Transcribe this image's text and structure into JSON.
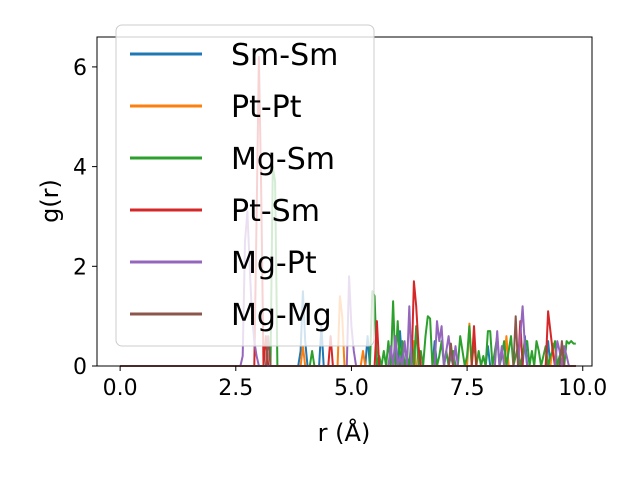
{
  "chart_data": {
    "type": "line",
    "title": "",
    "xlabel": "r (Å)",
    "ylabel": "g(r)",
    "xlim": [
      -0.5,
      10.2
    ],
    "ylim": [
      0,
      6.6
    ],
    "xticks": [
      0.0,
      2.5,
      5.0,
      7.5,
      10.0
    ],
    "xtick_labels": [
      "0.0",
      "2.5",
      "5.0",
      "7.5",
      "10.0"
    ],
    "yticks": [
      0,
      2,
      4,
      6
    ],
    "ytick_labels": [
      "0",
      "2",
      "4",
      "6"
    ],
    "grid": false,
    "legend_position": "upper-left",
    "series": [
      {
        "name": "Sm-Sm",
        "color": "#1f77b4",
        "x": [
          0.0,
          3.85,
          3.9,
          3.95,
          4.0,
          4.05,
          4.3,
          4.35,
          4.4,
          5.3,
          5.35,
          5.4,
          6.0,
          6.05,
          6.1,
          6.75,
          6.8,
          6.85,
          7.9,
          7.95,
          8.0,
          8.7,
          8.75,
          8.8,
          9.2,
          9.25,
          9.3,
          9.85
        ],
        "y": [
          0,
          0,
          0.3,
          1.5,
          0.5,
          0,
          0,
          0.8,
          0,
          0,
          0.6,
          0,
          0,
          0.7,
          0,
          0,
          0.5,
          0,
          0,
          0.4,
          0,
          0,
          0.6,
          0,
          0,
          0.5,
          0,
          0
        ]
      },
      {
        "name": "Pt-Pt",
        "color": "#ff7f0e",
        "x": [
          0.0,
          3.9,
          3.95,
          4.0,
          4.7,
          4.75,
          4.8,
          4.85,
          5.2,
          5.25,
          5.3,
          6.3,
          6.35,
          6.4,
          7.5,
          7.55,
          7.6,
          8.3,
          8.35,
          8.4,
          9.3,
          9.35,
          9.4,
          9.85
        ],
        "y": [
          0,
          0,
          0.4,
          0,
          0,
          1.4,
          1.0,
          0,
          0,
          0.3,
          0,
          0,
          0.5,
          0,
          0,
          0.85,
          0,
          0,
          0.6,
          0,
          0,
          0.45,
          0,
          0
        ]
      },
      {
        "name": "Mg-Sm",
        "color": "#2ca02c",
        "x": [
          0.0,
          3.2,
          3.25,
          3.3,
          3.35,
          3.4,
          4.1,
          4.15,
          4.2,
          5.4,
          5.45,
          5.5,
          5.55,
          5.6,
          5.65,
          5.7,
          5.75,
          5.8,
          5.85,
          5.9,
          5.95,
          6.0,
          6.05,
          6.1,
          6.15,
          6.2,
          6.25,
          6.3,
          6.35,
          6.4,
          6.45,
          6.5,
          6.55,
          6.6,
          6.65,
          6.7,
          6.75,
          6.8,
          6.85,
          6.9,
          6.95,
          7.0,
          7.05,
          7.1,
          7.15,
          7.2,
          7.25,
          7.3,
          7.35,
          7.4,
          7.45,
          7.5,
          7.55,
          7.6,
          7.65,
          7.7,
          7.75,
          7.8,
          7.85,
          7.9,
          7.95,
          8.0,
          8.05,
          8.1,
          8.15,
          8.2,
          8.25,
          8.3,
          8.35,
          8.4,
          8.45,
          8.5,
          8.55,
          8.6,
          8.65,
          8.7,
          8.75,
          8.8,
          8.85,
          8.9,
          8.95,
          9.0,
          9.05,
          9.1,
          9.15,
          9.2,
          9.25,
          9.3,
          9.35,
          9.4,
          9.45,
          9.5,
          9.55,
          9.6,
          9.65,
          9.7,
          9.75,
          9.8,
          9.85
        ],
        "y": [
          0,
          0,
          0,
          4.0,
          3.7,
          0,
          0,
          0.3,
          0,
          0,
          1.5,
          1.4,
          0,
          0.2,
          0,
          0.3,
          0,
          0.5,
          0,
          1.3,
          0,
          0.9,
          0,
          0.5,
          0,
          0.2,
          0,
          0.6,
          0,
          0.8,
          0,
          0.3,
          0,
          0.6,
          1.0,
          0.95,
          0,
          0.3,
          0,
          0.2,
          0.5,
          0,
          0.3,
          0,
          0.2,
          0.3,
          0,
          0,
          0.6,
          0.3,
          0,
          0.2,
          0.8,
          0,
          0.5,
          0,
          0.3,
          0,
          0.2,
          0,
          0.7,
          0.7,
          0,
          0.3,
          0.6,
          0,
          0.2,
          0.5,
          0,
          0.3,
          0.6,
          0,
          0.2,
          0.4,
          0,
          0.2,
          0.5,
          0.5,
          0,
          0.3,
          0,
          0.5,
          0.3,
          0,
          0.2,
          0.4,
          0,
          0.2,
          0.3,
          0.5,
          0,
          0.2,
          0.3,
          0,
          0.5,
          0.45,
          0.5,
          0.45,
          0.45
        ]
      },
      {
        "name": "Pt-Sm",
        "color": "#d62728",
        "x": [
          0.0,
          2.9,
          2.95,
          3.0,
          3.05,
          3.1,
          3.15,
          3.2,
          4.5,
          4.55,
          4.6,
          5.5,
          5.55,
          5.6,
          6.3,
          6.35,
          6.4,
          6.45,
          6.5,
          7.6,
          7.65,
          7.7,
          8.6,
          8.65,
          8.7,
          9.2,
          9.25,
          9.3,
          9.35,
          9.4,
          9.85
        ],
        "y": [
          0,
          0,
          3.0,
          6.2,
          3.5,
          0,
          0.6,
          0,
          0,
          0.6,
          0,
          0,
          0.9,
          0,
          0,
          1.7,
          1.2,
          0.4,
          0,
          0,
          0.8,
          0,
          0,
          0.9,
          0,
          0,
          1.1,
          0.7,
          0.3,
          0,
          0
        ]
      },
      {
        "name": "Mg-Pt",
        "color": "#9467bd",
        "x": [
          0.0,
          2.6,
          2.65,
          2.7,
          2.75,
          2.8,
          2.85,
          2.9,
          2.95,
          3.0,
          4.9,
          4.95,
          5.0,
          5.05,
          5.1,
          5.8,
          5.85,
          5.9,
          5.95,
          6.0,
          6.05,
          6.1,
          6.15,
          6.2,
          6.25,
          6.3,
          6.8,
          6.85,
          6.9,
          6.95,
          7.0,
          7.05,
          7.1,
          7.15,
          7.2,
          7.25,
          7.3,
          8.1,
          8.15,
          8.2,
          8.25,
          8.3,
          8.6,
          8.65,
          8.7,
          8.75,
          8.8,
          9.4,
          9.45,
          9.5,
          9.55,
          9.6,
          9.65,
          9.7
        ],
        "y": [
          0,
          0,
          0.2,
          2.5,
          3.1,
          2.0,
          1.0,
          0.5,
          0.2,
          0,
          0,
          1.8,
          0.8,
          0.3,
          0,
          0,
          0.4,
          0,
          0.6,
          0,
          0.2,
          0,
          0.5,
          0,
          1.2,
          0,
          0,
          0.9,
          0.5,
          0.8,
          0,
          0.3,
          0.6,
          0.2,
          0,
          0.4,
          0,
          0,
          0.7,
          0,
          0.4,
          0,
          0,
          0.6,
          1.2,
          0.4,
          0,
          0,
          0.5,
          0.3,
          0,
          0.4,
          0.2,
          0
        ]
      },
      {
        "name": "Mg-Mg",
        "color": "#8c564b",
        "x": [
          0.0,
          3.15,
          3.2,
          3.25,
          7.1,
          7.15,
          7.2,
          8.5,
          8.55,
          8.6,
          9.5,
          9.55,
          9.6,
          9.85
        ],
        "y": [
          0,
          0,
          0.6,
          0,
          0,
          0.45,
          0,
          0,
          1.0,
          0,
          0,
          0.5,
          0,
          0
        ]
      }
    ]
  }
}
